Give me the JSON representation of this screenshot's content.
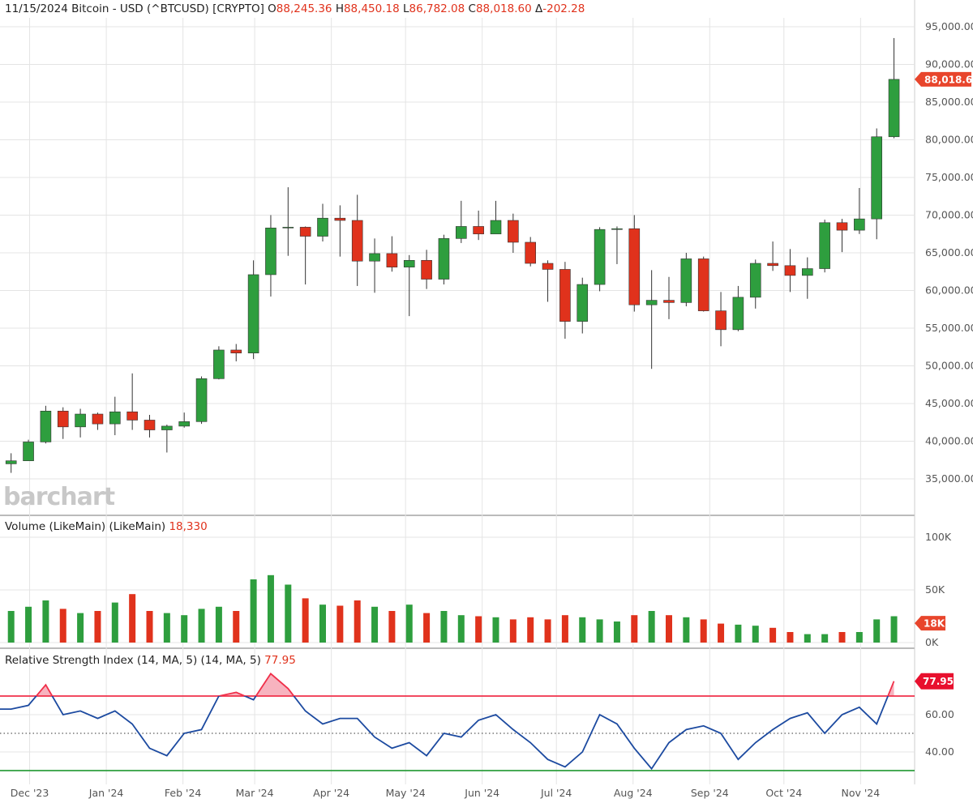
{
  "header": {
    "date": "11/15/2024",
    "symbol": "Bitcoin - USD (^BTCUSD) [CRYPTO]",
    "open_label": "O",
    "open": "88,245.36",
    "high_label": "H",
    "high": "88,450.18",
    "low_label": "L",
    "low": "86,782.08",
    "close_label": "C",
    "close": "88,018.60",
    "change_label": "Δ",
    "change": "-202.28"
  },
  "watermark": "barchart",
  "volume_panel": {
    "label": "Volume (LikeMain)  (LikeMain)",
    "value": "18,330",
    "tag": "18K"
  },
  "rsi_panel": {
    "label": "Relative Strength Index (14, MA, 5)  (14, MA, 5)",
    "value": "77.95",
    "tag": "77.95"
  },
  "price_tag": "88,018.60",
  "colors": {
    "up": "#2e9e3e",
    "down": "#e0321c",
    "rsi_line": "#1c4aa0",
    "overbought": "#f0304a",
    "oversold": "#2e9e3e",
    "tag": "#e8452c",
    "rsi_tag": "#e8102e"
  },
  "chart_data": [
    {
      "type": "candlestick",
      "title": "Bitcoin - USD (^BTCUSD)",
      "y_ticks": [
        "95,000.00",
        "90,000.00",
        "85,000.00",
        "80,000.00",
        "75,000.00",
        "70,000.00",
        "65,000.00",
        "60,000.00",
        "55,000.00",
        "50,000.00",
        "45,000.00",
        "40,000.00",
        "35,000.00"
      ],
      "y_tick_values": [
        95000,
        90000,
        85000,
        80000,
        75000,
        70000,
        65000,
        60000,
        55000,
        50000,
        45000,
        40000,
        35000
      ],
      "ylim": [
        33700,
        96200
      ],
      "x_ticks": [
        "Dec '23",
        "Jan '24",
        "Feb '24",
        "Mar '24",
        "Apr '24",
        "May '24",
        "Jun '24",
        "Jul '24",
        "Aug '24",
        "Sep '24",
        "Oct '24",
        "Nov '24"
      ],
      "x_tick_dates": [
        "2023-12-01",
        "2024-01-01",
        "2024-02-01",
        "2024-03-01",
        "2024-04-01",
        "2024-05-01",
        "2024-06-01",
        "2024-07-01",
        "2024-08-01",
        "2024-09-01",
        "2024-10-01",
        "2024-11-01"
      ],
      "grid": true,
      "period": "weekly (approximated from daily chart)",
      "dates": [
        "2023-11-20",
        "2023-11-27",
        "2023-12-04",
        "2023-12-11",
        "2023-12-18",
        "2023-12-25",
        "2024-01-01",
        "2024-01-08",
        "2024-01-15",
        "2024-01-22",
        "2024-01-29",
        "2024-02-05",
        "2024-02-12",
        "2024-02-19",
        "2024-02-26",
        "2024-03-04",
        "2024-03-11",
        "2024-03-18",
        "2024-03-25",
        "2024-04-01",
        "2024-04-08",
        "2024-04-15",
        "2024-04-22",
        "2024-04-29",
        "2024-05-06",
        "2024-05-13",
        "2024-05-20",
        "2024-05-27",
        "2024-06-03",
        "2024-06-10",
        "2024-06-17",
        "2024-06-24",
        "2024-07-01",
        "2024-07-08",
        "2024-07-15",
        "2024-07-22",
        "2024-07-29",
        "2024-08-05",
        "2024-08-12",
        "2024-08-19",
        "2024-08-26",
        "2024-09-02",
        "2024-09-09",
        "2024-09-16",
        "2024-09-23",
        "2024-09-30",
        "2024-10-07",
        "2024-10-14",
        "2024-10-21",
        "2024-10-28",
        "2024-11-04",
        "2024-11-11"
      ],
      "ohlc": [
        [
          37000,
          38400,
          35800,
          37400
        ],
        [
          37400,
          40200,
          37500,
          39900
        ],
        [
          39900,
          44700,
          39700,
          44000
        ],
        [
          44000,
          44500,
          40300,
          41900
        ],
        [
          41900,
          44300,
          40500,
          43600
        ],
        [
          43600,
          43800,
          41500,
          42300
        ],
        [
          42300,
          45900,
          40800,
          43900
        ],
        [
          43900,
          49000,
          41500,
          42800
        ],
        [
          42800,
          43500,
          40500,
          41500
        ],
        [
          41500,
          42200,
          38500,
          42000
        ],
        [
          42000,
          43800,
          41800,
          42600
        ],
        [
          42600,
          48600,
          42300,
          48300
        ],
        [
          48300,
          52600,
          48200,
          52100
        ],
        [
          52100,
          52900,
          50600,
          51700
        ],
        [
          51700,
          64000,
          50900,
          62100
        ],
        [
          62100,
          70000,
          59200,
          68300
        ],
        [
          68300,
          73700,
          64600,
          68400
        ],
        [
          68400,
          68500,
          60800,
          67200
        ],
        [
          67200,
          71500,
          66500,
          69600
        ],
        [
          69600,
          71300,
          64500,
          69300
        ],
        [
          69300,
          72700,
          60600,
          63900
        ],
        [
          63900,
          66900,
          59700,
          64900
        ],
        [
          64900,
          67200,
          62500,
          63100
        ],
        [
          63100,
          64700,
          56600,
          64000
        ],
        [
          64000,
          65400,
          60200,
          61500
        ],
        [
          61500,
          67400,
          60800,
          66900
        ],
        [
          66900,
          71900,
          66300,
          68500
        ],
        [
          68500,
          70600,
          66700,
          67500
        ],
        [
          67500,
          71900,
          67500,
          69300
        ],
        [
          69300,
          70200,
          65000,
          66400
        ],
        [
          66400,
          67100,
          63200,
          63600
        ],
        [
          63600,
          64000,
          58500,
          62800
        ],
        [
          62800,
          63800,
          53600,
          55900
        ],
        [
          55900,
          61700,
          54300,
          60800
        ],
        [
          60800,
          68400,
          59900,
          68100
        ],
        [
          68100,
          68500,
          63500,
          68200
        ],
        [
          68200,
          70000,
          57200,
          58100
        ],
        [
          58100,
          62700,
          49600,
          58700
        ],
        [
          58700,
          61800,
          56200,
          58400
        ],
        [
          58400,
          65000,
          57900,
          64200
        ],
        [
          64200,
          64500,
          57200,
          57300
        ],
        [
          57300,
          59800,
          52600,
          54800
        ],
        [
          54800,
          60600,
          54600,
          59100
        ],
        [
          59100,
          64100,
          57600,
          63600
        ],
        [
          63600,
          66500,
          62600,
          63300
        ],
        [
          63300,
          65500,
          59800,
          62000
        ],
        [
          62000,
          64400,
          58900,
          62900
        ],
        [
          62900,
          69400,
          62400,
          69000
        ],
        [
          69000,
          69500,
          65100,
          68000
        ],
        [
          68000,
          73600,
          67500,
          69500
        ],
        [
          69500,
          81500,
          66800,
          80400
        ],
        [
          80400,
          93500,
          80200,
          88018.6
        ]
      ],
      "last_price": 88018.6
    },
    {
      "type": "bar",
      "title": "Volume (LikeMain)",
      "y_ticks": [
        "100K",
        "50K",
        "0K"
      ],
      "y_tick_values": [
        100,
        50,
        0
      ],
      "ylim": [
        0,
        105
      ],
      "unit": "K",
      "values": [
        30,
        34,
        40,
        32,
        28,
        30,
        38,
        46,
        30,
        28,
        26,
        32,
        34,
        30,
        60,
        64,
        55,
        42,
        36,
        35,
        40,
        34,
        30,
        36,
        28,
        30,
        26,
        25,
        24,
        22,
        24,
        22,
        26,
        24,
        22,
        20,
        26,
        30,
        26,
        24,
        22,
        18,
        17,
        16,
        14,
        10,
        8,
        8,
        10,
        10,
        22,
        25
      ],
      "last_value": 18.33
    },
    {
      "type": "line",
      "title": "Relative Strength Index (14, MA, 5)",
      "y_ticks": [
        "60.00",
        "40.00"
      ],
      "y_tick_values": [
        60,
        40
      ],
      "ylim": [
        25,
        90
      ],
      "reference_lines": {
        "overbought": 70,
        "mid": 50,
        "oversold": 30
      },
      "values": [
        63,
        65,
        76,
        60,
        62,
        58,
        62,
        55,
        42,
        38,
        50,
        52,
        70,
        72,
        68,
        82,
        74,
        62,
        55,
        58,
        58,
        48,
        42,
        45,
        38,
        50,
        48,
        57,
        60,
        52,
        45,
        36,
        32,
        40,
        60,
        55,
        42,
        31,
        45,
        52,
        54,
        50,
        36,
        45,
        52,
        58,
        61,
        50,
        60,
        64,
        55,
        77.95
      ],
      "last_value": 77.95
    }
  ]
}
